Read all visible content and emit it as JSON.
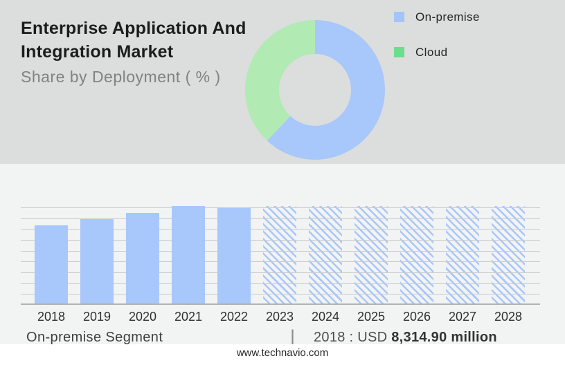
{
  "header": {
    "title_line1": "Enterprise Application And",
    "title_line2": "Integration Market",
    "subtitle": "Share by Deployment ( % )"
  },
  "legend": {
    "items": [
      {
        "label": "On-premise",
        "color": "#a4c5f9"
      },
      {
        "label": "Cloud",
        "color": "#6ade8c"
      }
    ]
  },
  "chart_data": [
    {
      "type": "pie",
      "donut": true,
      "title": "Share by Deployment ( % )",
      "labels": [
        "On-premise",
        "Cloud"
      ],
      "values_pct": [
        62,
        38
      ],
      "colors": [
        "#a8c7fa",
        "#b2eab4"
      ],
      "start_angle_deg": 0,
      "legend_position": "top-right"
    },
    {
      "type": "bar",
      "title": "On-premise segment market size by year",
      "categories": [
        "2018",
        "2019",
        "2020",
        "2021",
        "2022",
        "2023",
        "2024",
        "2025",
        "2026",
        "2027",
        "2028"
      ],
      "series": [
        {
          "name": "On-premise segment",
          "values_relative": [
            0.8,
            0.865,
            0.93,
            1.0,
            0.98,
            1.0,
            1.0,
            1.0,
            1.0,
            1.0,
            1.0
          ]
        }
      ],
      "actual_years": [
        "2018",
        "2019",
        "2020",
        "2021",
        "2022"
      ],
      "forecast_years_hatched": [
        "2023",
        "2024",
        "2025",
        "2026",
        "2027",
        "2028"
      ],
      "known_point": {
        "year": "2018",
        "value_label": "USD 8,314.90 million"
      },
      "bar_color": "#a8c7fa",
      "grid": true,
      "gridline_count": 9,
      "xlabel": "",
      "ylabel": ""
    }
  ],
  "footer": {
    "segment_label": "On-premise Segment",
    "separator": "|",
    "value_prefix": "2018 : USD ",
    "value_bold": "8,314.90 million",
    "website": "www.technavio.com"
  },
  "colors": {
    "bar_blue": "#a8c7fa",
    "donut_blue": "#a8c7fa",
    "donut_green": "#b2eab4",
    "legend_blue": "#a4c5f9",
    "legend_green": "#6ade8c",
    "gridline": "#cbcbcb",
    "baseline": "#b2b2b2",
    "top_bg": "#dcdddd",
    "bottom_bg": "#f2f3f3"
  }
}
